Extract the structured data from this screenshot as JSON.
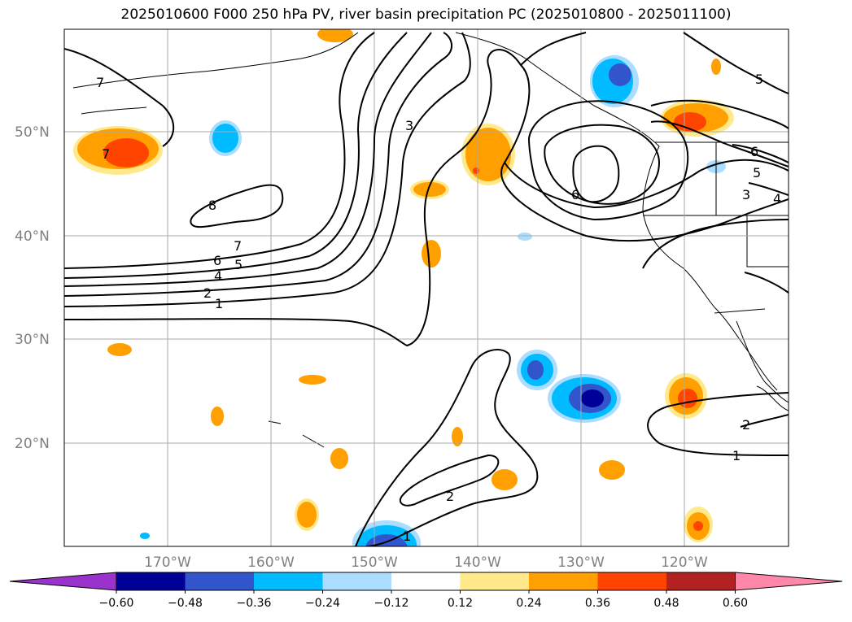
{
  "title": "2025010600 F000 250 hPa PV, river basin precipitation PC (2025010800 - 2025011100)",
  "map": {
    "lat_labels": [
      "50°N",
      "40°N",
      "30°N",
      "20°N"
    ],
    "lon_labels": [
      "170°W",
      "160°W",
      "150°W",
      "140°W",
      "130°W",
      "120°W"
    ]
  },
  "contour_labels": [
    {
      "text": "7",
      "id": "a"
    },
    {
      "text": "8",
      "id": "b"
    },
    {
      "text": "3",
      "id": "c"
    },
    {
      "text": "7",
      "id": "d"
    },
    {
      "text": "6",
      "id": "e"
    },
    {
      "text": "5",
      "id": "f"
    },
    {
      "text": "4",
      "id": "g"
    },
    {
      "text": "2",
      "id": "h"
    },
    {
      "text": "1",
      "id": "i"
    },
    {
      "text": "6",
      "id": "j"
    },
    {
      "text": "5",
      "id": "k"
    },
    {
      "text": "6",
      "id": "l"
    },
    {
      "text": "5",
      "id": "m"
    },
    {
      "text": "3",
      "id": "n"
    },
    {
      "text": "4",
      "id": "o"
    },
    {
      "text": "2",
      "id": "p"
    },
    {
      "text": "1",
      "id": "q"
    },
    {
      "text": "1",
      "id": "r"
    },
    {
      "text": "2",
      "id": "s"
    }
  ],
  "colorbar": {
    "colors": [
      "#9933cc",
      "#000099",
      "#3355cc",
      "#00bbff",
      "#aaddff",
      "#ffffff",
      "#ffe98a",
      "#ff9f00",
      "#ff4400",
      "#b22222",
      "#ff88aa"
    ],
    "ticks": [
      "−0.60",
      "−0.48",
      "−0.36",
      "−0.24",
      "−0.12",
      "0.12",
      "0.24",
      "0.36",
      "0.48",
      "0.60"
    ]
  }
}
